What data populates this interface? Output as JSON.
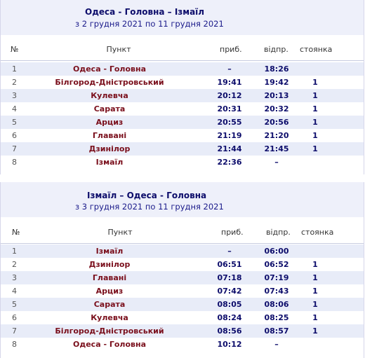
{
  "headers": {
    "num": "№",
    "point": "Пункт",
    "arrival": "приб.",
    "departure": "відпр.",
    "stop": "стоянка"
  },
  "tables": [
    {
      "route": "Одеса - Головна – Ізмаїл",
      "period": "з 2 грудня 2021 по 11 грудня 2021",
      "rows": [
        {
          "num": "1",
          "station": "Одеса - Головна",
          "arr": "–",
          "dep": "18:26",
          "stop": ""
        },
        {
          "num": "2",
          "station": "Білгород-Дністровський",
          "arr": "19:41",
          "dep": "19:42",
          "stop": "1"
        },
        {
          "num": "3",
          "station": "Кулевча",
          "arr": "20:12",
          "dep": "20:13",
          "stop": "1"
        },
        {
          "num": "4",
          "station": "Сарата",
          "arr": "20:31",
          "dep": "20:32",
          "stop": "1"
        },
        {
          "num": "5",
          "station": "Арциз",
          "arr": "20:55",
          "dep": "20:56",
          "stop": "1"
        },
        {
          "num": "6",
          "station": "Главані",
          "arr": "21:19",
          "dep": "21:20",
          "stop": "1"
        },
        {
          "num": "7",
          "station": "Дзинілор",
          "arr": "21:44",
          "dep": "21:45",
          "stop": "1"
        },
        {
          "num": "8",
          "station": "Ізмаїл",
          "arr": "22:36",
          "dep": "–",
          "stop": ""
        }
      ]
    },
    {
      "route": "Ізмаїл – Одеса - Головна",
      "period": "з 3 грудня 2021 по 11 грудня 2021",
      "rows": [
        {
          "num": "1",
          "station": "Ізмаїл",
          "arr": "–",
          "dep": "06:00",
          "stop": ""
        },
        {
          "num": "2",
          "station": "Дзинілор",
          "arr": "06:51",
          "dep": "06:52",
          "stop": "1"
        },
        {
          "num": "3",
          "station": "Главані",
          "arr": "07:18",
          "dep": "07:19",
          "stop": "1"
        },
        {
          "num": "4",
          "station": "Арциз",
          "arr": "07:42",
          "dep": "07:43",
          "stop": "1"
        },
        {
          "num": "5",
          "station": "Сарата",
          "arr": "08:05",
          "dep": "08:06",
          "stop": "1"
        },
        {
          "num": "6",
          "station": "Кулевча",
          "arr": "08:24",
          "dep": "08:25",
          "stop": "1"
        },
        {
          "num": "7",
          "station": "Білгород-Дністровський",
          "arr": "08:56",
          "dep": "08:57",
          "stop": "1"
        },
        {
          "num": "8",
          "station": "Одеса - Головна",
          "arr": "10:12",
          "dep": "–",
          "stop": ""
        }
      ]
    }
  ]
}
